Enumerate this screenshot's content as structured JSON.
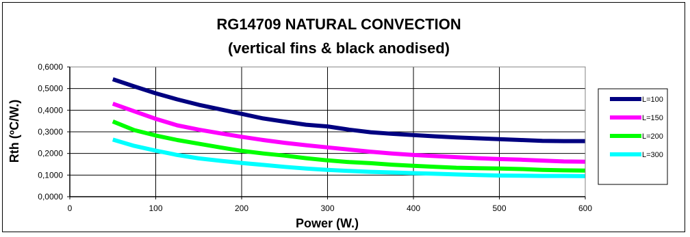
{
  "chart_data": {
    "type": "line",
    "title": "RG14709 NATURAL CONVECTION",
    "subtitle": "(vertical fins & black anodised)",
    "xlabel": "Power (W.)",
    "ylabel": "Rth (ºC/W.)",
    "xlim": [
      0,
      600
    ],
    "ylim": [
      0,
      0.6
    ],
    "x_ticks": [
      "0",
      "100",
      "200",
      "300",
      "400",
      "500",
      "600"
    ],
    "y_ticks": [
      "0,0000",
      "0,1000",
      "0,2000",
      "0,3000",
      "0,4000",
      "0,5000",
      "0,6000"
    ],
    "grid": true,
    "legend_position": "right",
    "x": [
      50,
      75,
      100,
      125,
      150,
      175,
      200,
      225,
      250,
      275,
      300,
      325,
      350,
      375,
      400,
      425,
      450,
      475,
      500,
      525,
      550,
      575,
      600
    ],
    "series": [
      {
        "name": "L=100",
        "color": "#000080",
        "values": [
          0.543,
          0.51,
          0.478,
          0.45,
          0.425,
          0.404,
          0.383,
          0.362,
          0.347,
          0.333,
          0.325,
          0.31,
          0.298,
          0.291,
          0.285,
          0.279,
          0.274,
          0.27,
          0.266,
          0.262,
          0.258,
          0.257,
          0.257
        ]
      },
      {
        "name": "L=150",
        "color": "#ff00ff",
        "values": [
          0.43,
          0.395,
          0.36,
          0.33,
          0.31,
          0.293,
          0.277,
          0.262,
          0.249,
          0.238,
          0.228,
          0.218,
          0.208,
          0.2,
          0.193,
          0.188,
          0.183,
          0.178,
          0.174,
          0.171,
          0.167,
          0.163,
          0.162
        ]
      },
      {
        "name": "L=200",
        "color": "#00ff00",
        "values": [
          0.348,
          0.308,
          0.283,
          0.262,
          0.245,
          0.228,
          0.212,
          0.2,
          0.19,
          0.178,
          0.168,
          0.16,
          0.155,
          0.148,
          0.143,
          0.138,
          0.134,
          0.132,
          0.13,
          0.128,
          0.124,
          0.122,
          0.121
        ]
      },
      {
        "name": "L=300",
        "color": "#00ffff",
        "values": [
          0.264,
          0.235,
          0.213,
          0.193,
          0.177,
          0.166,
          0.156,
          0.147,
          0.138,
          0.13,
          0.124,
          0.119,
          0.115,
          0.112,
          0.109,
          0.106,
          0.103,
          0.1,
          0.098,
          0.097,
          0.096,
          0.096,
          0.095
        ]
      }
    ]
  }
}
